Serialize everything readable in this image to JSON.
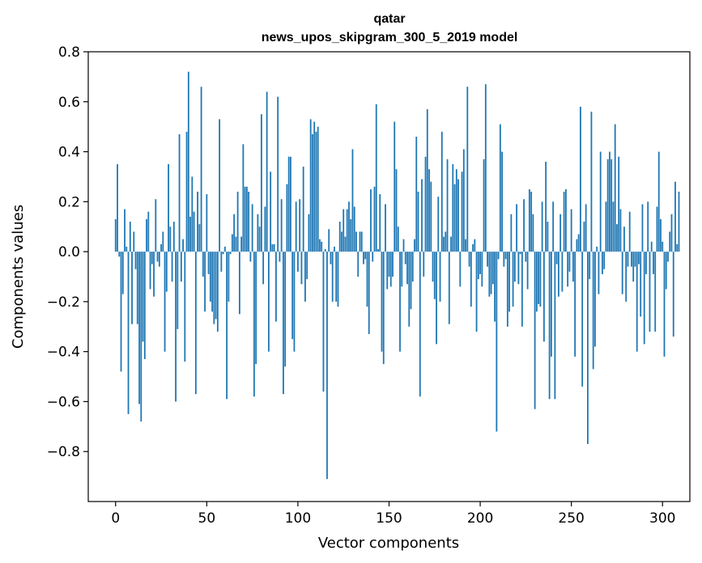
{
  "chart_data": {
    "type": "bar",
    "title": "qatar",
    "subtitle": "news_upos_skipgram_300_5_2019 model",
    "xlabel": "Vector components",
    "ylabel": "Components values",
    "xlim": [
      -15,
      315
    ],
    "ylim": [
      -1.0,
      0.8
    ],
    "xticks": [
      0,
      50,
      100,
      150,
      200,
      250,
      300
    ],
    "yticks": [
      0.8,
      0.6,
      0.4,
      0.2,
      0.0,
      -0.2,
      -0.4,
      -0.6,
      -0.8
    ],
    "ytick_labels": [
      "0.8",
      "0.6",
      "0.4",
      "0.2",
      "0.0",
      "−0.2",
      "−0.4",
      "−0.6",
      "−0.8"
    ],
    "grid": false,
    "bar_color": "#1f77b4",
    "values": [
      0.13,
      0.35,
      -0.02,
      -0.48,
      -0.17,
      0.17,
      0.02,
      -0.65,
      0.12,
      -0.29,
      0.08,
      -0.07,
      -0.29,
      -0.61,
      -0.68,
      -0.36,
      -0.43,
      0.13,
      0.16,
      -0.15,
      -0.05,
      -0.18,
      0.21,
      -0.04,
      -0.06,
      0.03,
      0.08,
      -0.4,
      -0.16,
      0.35,
      0.1,
      -0.12,
      0.12,
      -0.6,
      -0.31,
      0.47,
      -0.12,
      0.05,
      -0.44,
      0.48,
      0.72,
      0.14,
      0.3,
      0.16,
      -0.57,
      0.24,
      0.11,
      0.66,
      -0.1,
      -0.24,
      0.23,
      -0.09,
      -0.2,
      -0.24,
      -0.29,
      -0.27,
      -0.32,
      0.53,
      -0.08,
      -0.01,
      0.02,
      -0.59,
      -0.2,
      -0.01,
      0.07,
      0.15,
      0.06,
      0.24,
      -0.25,
      0.06,
      0.43,
      0.26,
      0.26,
      0.24,
      -0.04,
      0.19,
      -0.58,
      -0.45,
      0.15,
      0.1,
      0.55,
      -0.13,
      0.18,
      0.64,
      -0.4,
      0.32,
      0.03,
      0.03,
      -0.28,
      0.62,
      -0.04,
      0.21,
      -0.57,
      -0.46,
      0.27,
      0.38,
      0.38,
      -0.35,
      -0.4,
      0.2,
      -0.08,
      0.21,
      -0.13,
      0.34,
      -0.2,
      -0.11,
      0.15,
      0.53,
      0.47,
      0.52,
      0.48,
      0.5,
      0.05,
      0.04,
      -0.56,
      0.01,
      -0.91,
      0.09,
      -0.05,
      -0.2,
      0.02,
      -0.2,
      -0.22,
      0.12,
      0.08,
      0.17,
      0.06,
      0.17,
      0.2,
      0.13,
      0.41,
      0.18,
      0.08,
      -0.1,
      0.08,
      0.08,
      -0.05,
      -0.03,
      -0.22,
      -0.33,
      0.25,
      -0.04,
      0.26,
      0.59,
      0.01,
      0.23,
      -0.4,
      -0.45,
      0.19,
      -0.15,
      -0.1,
      -0.14,
      -0.1,
      0.52,
      0.33,
      0.1,
      -0.4,
      -0.14,
      0.05,
      -0.05,
      -0.13,
      -0.3,
      -0.23,
      -0.12,
      0.05,
      0.46,
      0.24,
      -0.58,
      0.29,
      -0.1,
      0.38,
      0.57,
      0.33,
      0.28,
      -0.12,
      -0.19,
      -0.37,
      0.22,
      -0.2,
      0.48,
      0.06,
      0.08,
      0.37,
      -0.29,
      0.06,
      0.35,
      0.27,
      0.33,
      0.29,
      -0.14,
      0.32,
      0.41,
      0.05,
      0.66,
      -0.06,
      -0.22,
      0.03,
      0.05,
      -0.32,
      -0.11,
      -0.09,
      -0.14,
      0.37,
      0.67,
      -0.06,
      -0.18,
      -0.17,
      -0.13,
      -0.28,
      -0.72,
      -0.03,
      0.51,
      0.4,
      -0.06,
      -0.03,
      -0.3,
      -0.24,
      0.15,
      -0.22,
      -0.12,
      0.19,
      -0.13,
      -0.01,
      -0.3,
      0.21,
      -0.04,
      -0.15,
      0.25,
      0.24,
      0.15,
      -0.63,
      -0.24,
      -0.21,
      -0.22,
      0.2,
      -0.36,
      0.36,
      0.12,
      -0.59,
      -0.42,
      0.2,
      -0.59,
      -0.05,
      -0.18,
      0.15,
      -0.16,
      0.24,
      0.25,
      -0.14,
      -0.08,
      0.17,
      -0.12,
      -0.42,
      0.05,
      0.07,
      0.58,
      -0.54,
      0.12,
      0.19,
      -0.77,
      -0.11,
      0.56,
      -0.47,
      -0.38,
      0.02,
      -0.17,
      0.4,
      -0.09,
      -0.07,
      0.2,
      0.37,
      0.4,
      0.37,
      0.2,
      0.51,
      0.11,
      0.38,
      0.17,
      -0.17,
      0.1,
      -0.2,
      -0.06,
      0.16,
      -0.06,
      -0.12,
      -0.06,
      -0.4,
      -0.05,
      -0.26,
      0.19,
      -0.37,
      -0.09,
      0.2,
      -0.32,
      0.04,
      -0.09,
      -0.32,
      0.18,
      0.4,
      0.13,
      0.04,
      -0.42,
      -0.15,
      -0.04,
      0.08,
      0.15,
      -0.34,
      0.28,
      0.03,
      0.24
    ]
  }
}
